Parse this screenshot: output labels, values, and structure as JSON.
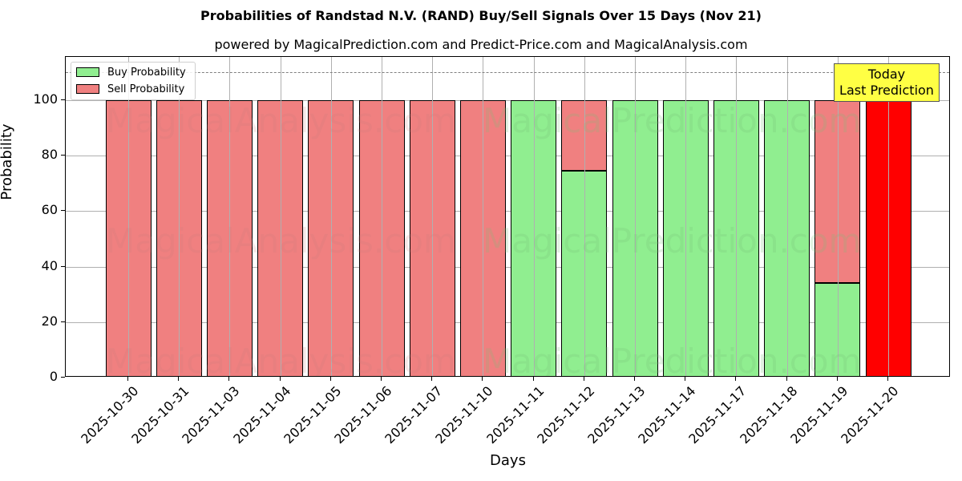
{
  "chart_data": {
    "type": "bar",
    "stacked": true,
    "title": "Probabilities of Randstad N.V. (RAND) Buy/Sell Signals Over 15 Days (Nov 21)",
    "subtitle": "powered by MagicalPrediction.com and Predict-Price.com and MagicalAnalysis.com",
    "xlabel": "Days",
    "ylabel": "Probability",
    "ylim": [
      0,
      115
    ],
    "yticks": [
      0,
      20,
      40,
      60,
      80,
      100
    ],
    "grid": true,
    "legend_position": "upper left",
    "categories": [
      "2025-10-30",
      "2025-10-31",
      "2025-11-03",
      "2025-11-04",
      "2025-11-05",
      "2025-11-06",
      "2025-11-07",
      "2025-11-10",
      "2025-11-11",
      "2025-11-12",
      "2025-11-13",
      "2025-11-14",
      "2025-11-17",
      "2025-11-18",
      "2025-11-19",
      "2025-11-20"
    ],
    "series": [
      {
        "name": "Buy Probability",
        "color": "#90ee90",
        "values": [
          0,
          0,
          0,
          0,
          0,
          0,
          0,
          0,
          100,
          74.6,
          100,
          100,
          100,
          100,
          34.1,
          0
        ]
      },
      {
        "name": "Sell Probability",
        "color": "#f08080",
        "values": [
          100,
          100,
          100,
          100,
          100,
          100,
          100,
          100,
          0,
          25.4,
          0,
          0,
          0,
          0,
          65.9,
          100
        ]
      }
    ],
    "highlight": {
      "index": 15,
      "color": "#ff0000",
      "note": "last bar drawn in solid red (sell)"
    },
    "reference_line": {
      "y": 110,
      "style": "dashed",
      "color": "#808080"
    },
    "annotations": [
      {
        "text": "Today\nLast Prediction",
        "line1": "Today",
        "line2": "Last Prediction",
        "x": "2025-11-20",
        "background": "#ffff44"
      }
    ],
    "watermarks": [
      "MagicalAnalysis.com",
      "MagicalPrediction.com"
    ]
  },
  "legend": {
    "buy": "Buy Probability",
    "sell": "Sell Probability"
  },
  "annotation": {
    "line1": "Today",
    "line2": "Last Prediction"
  }
}
